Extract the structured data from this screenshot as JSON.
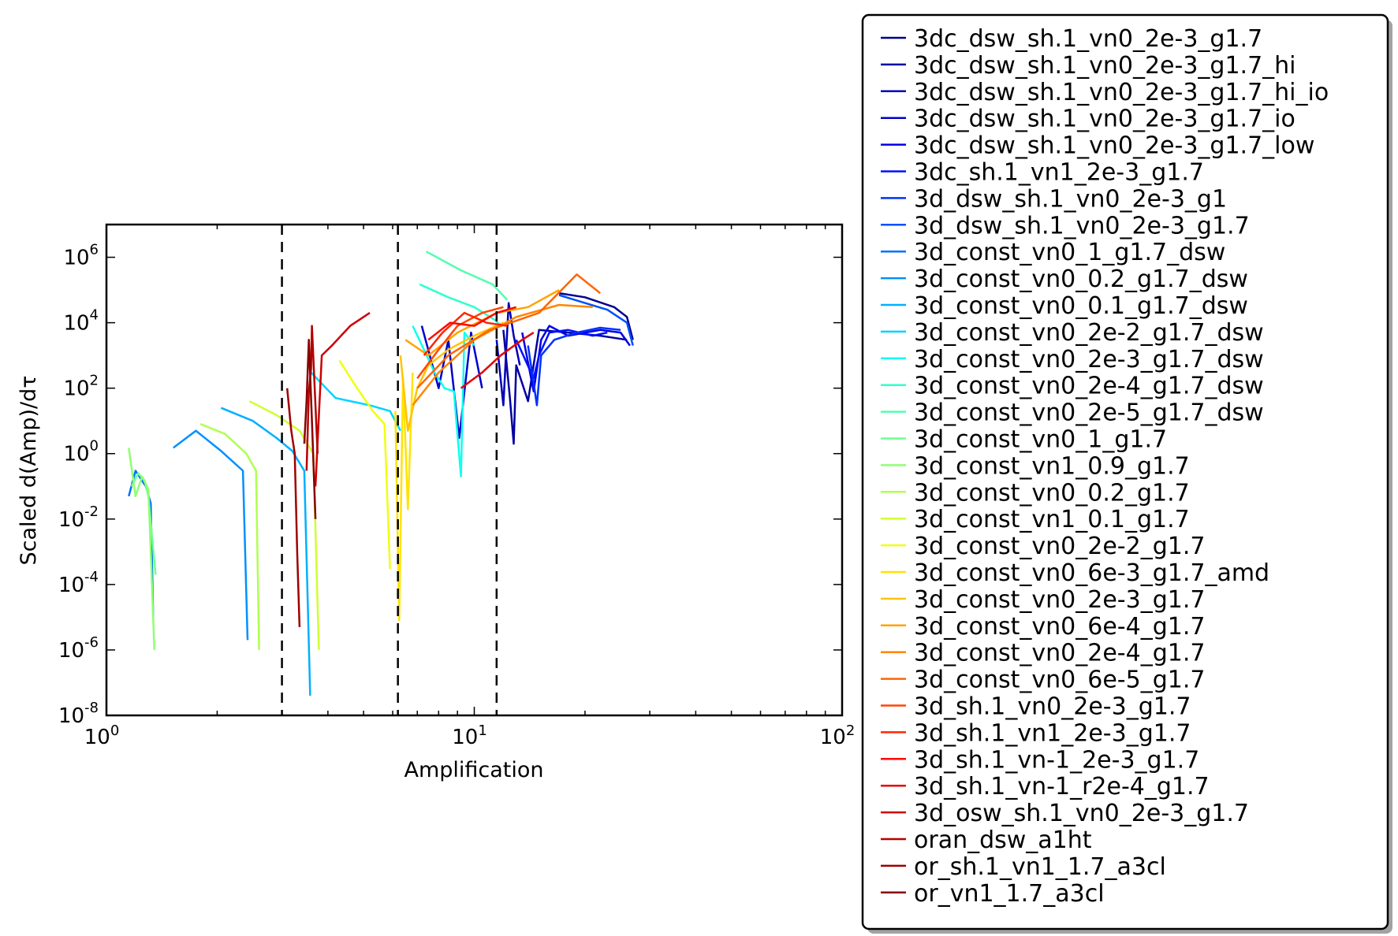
{
  "chart_data": {
    "type": "line",
    "xlabel": "Amplification",
    "ylabel": "Scaled d(Amp)/dτ",
    "x_scale": "log",
    "y_scale": "log",
    "xlim": [
      1,
      100
    ],
    "ylim": [
      1e-08,
      10000000.0
    ],
    "x_ticks": [
      {
        "base": "10",
        "exp": "0"
      },
      {
        "base": "10",
        "exp": "1"
      },
      {
        "base": "10",
        "exp": "2"
      }
    ],
    "y_ticks": [
      {
        "base": "10",
        "exp": "-8"
      },
      {
        "base": "10",
        "exp": "-6"
      },
      {
        "base": "10",
        "exp": "-4"
      },
      {
        "base": "10",
        "exp": "-2"
      },
      {
        "base": "10",
        "exp": "0"
      },
      {
        "base": "10",
        "exp": "2"
      },
      {
        "base": "10",
        "exp": "4"
      },
      {
        "base": "10",
        "exp": "6"
      }
    ],
    "vlines": [
      3.0,
      6.2,
      11.5
    ],
    "vline_style": "dashed-black",
    "legend_location": "outside-right",
    "series": [
      {
        "name": "3dc_dsw_sh.1_vn0_2e-3_g1.7",
        "color": "#00008f",
        "points": [
          [
            17,
            80000.0
          ],
          [
            20,
            60000.0
          ],
          [
            24,
            30000.0
          ],
          [
            26,
            15000.0
          ],
          [
            27,
            3000.0
          ]
        ]
      },
      {
        "name": "3dc_dsw_sh.1_vn0_2e-3_g1.7_hi",
        "color": "#0000a0",
        "points": [
          [
            12,
            6000.0
          ],
          [
            12.5,
            50
          ],
          [
            12.8,
            2
          ],
          [
            13,
            500
          ],
          [
            14,
            40
          ],
          [
            15,
            6000.0
          ],
          [
            18,
            5000.0
          ],
          [
            22,
            4000.0
          ],
          [
            26,
            3000.0
          ]
        ]
      },
      {
        "name": "3dc_dsw_sh.1_vn0_2e-3_g1.7_hi_io",
        "color": "#0000b5",
        "points": [
          [
            11.5,
            3000.0
          ],
          [
            12,
            30
          ],
          [
            12.4,
            40000.0
          ],
          [
            12.8,
            4000.0
          ],
          [
            13.3,
            500
          ]
        ]
      },
      {
        "name": "3dc_dsw_sh.1_vn0_2e-3_g1.7_io",
        "color": "#0000cc",
        "points": [
          [
            7.2,
            8000.0
          ],
          [
            8,
            100
          ],
          [
            8.5,
            3000.0
          ],
          [
            9.1,
            3
          ],
          [
            9.8,
            5000.0
          ],
          [
            10.5,
            100
          ]
        ]
      },
      {
        "name": "3dc_dsw_sh.1_vn0_2e-3_g1.7_low",
        "color": "#0000e3",
        "points": [
          [
            13.5,
            5000.0
          ],
          [
            14.5,
            80
          ],
          [
            15.2,
            3000.0
          ],
          [
            16,
            8000.0
          ],
          [
            18,
            4000.0
          ],
          [
            22,
            6000.0
          ],
          [
            25,
            5000.0
          ],
          [
            26.5,
            2000.0
          ]
        ]
      },
      {
        "name": "3dc_sh.1_vn1_2e-3_g1.7",
        "color": "#0010ff",
        "points": [
          [
            13,
            3000.0
          ],
          [
            14.5,
            200
          ],
          [
            15,
            1000.0
          ],
          [
            16,
            5000.0
          ],
          [
            18,
            6000.0
          ],
          [
            21,
            4000.0
          ],
          [
            23,
            5000.0
          ]
        ]
      },
      {
        "name": "3d_dsw_sh.1_vn0_2e-3_g1",
        "color": "#0030ff",
        "points": [
          [
            14,
            2000.0
          ],
          [
            14.8,
            30
          ],
          [
            15.2,
            1000.0
          ],
          [
            16.5,
            3000.0
          ],
          [
            19,
            5000.0
          ],
          [
            22,
            7000.0
          ],
          [
            25,
            6000.0
          ]
        ]
      },
      {
        "name": "3d_dsw_sh.1_vn0_2e-3_g1.7",
        "color": "#0050ff",
        "points": [
          [
            17,
            70000.0
          ],
          [
            20,
            40000.0
          ],
          [
            23,
            25000.0
          ],
          [
            26,
            10000.0
          ],
          [
            27,
            2000.0
          ]
        ]
      },
      {
        "name": "3d_const_vn0_1_g1.7_dsw",
        "color": "#0070ff",
        "points": [
          [
            1.15,
            0.05
          ],
          [
            1.2,
            0.3
          ],
          [
            1.28,
            0.1
          ],
          [
            1.32,
            0.03
          ],
          [
            1.34,
            1e-05
          ]
        ]
      },
      {
        "name": "3d_const_vn0_0.2_g1.7_dsw",
        "color": "#0090ff",
        "points": [
          [
            1.52,
            1.5
          ],
          [
            1.75,
            5
          ],
          [
            2.05,
            1.2
          ],
          [
            2.35,
            0.3
          ],
          [
            2.42,
            2e-06
          ]
        ]
      },
      {
        "name": "3d_const_vn0_0.1_g1.7_dsw",
        "color": "#00b0ff",
        "points": [
          [
            2.05,
            25
          ],
          [
            2.5,
            10
          ],
          [
            2.9,
            3
          ],
          [
            3.2,
            1.2
          ],
          [
            3.45,
            0.3
          ],
          [
            3.58,
            4e-08
          ]
        ]
      },
      {
        "name": "3d_const_vn0_2e-2_g1.7_dsw",
        "color": "#00d4ff",
        "points": [
          [
            3.6,
            300
          ],
          [
            4.2,
            50
          ],
          [
            5.2,
            30
          ],
          [
            5.9,
            20
          ],
          [
            6.3,
            5
          ]
        ]
      },
      {
        "name": "3d_const_vn0_2e-3_g1.7_dsw",
        "color": "#10ffef",
        "points": [
          [
            6.8,
            8000.0
          ],
          [
            7.3,
            1500.0
          ],
          [
            7.8,
            300
          ],
          [
            8.3,
            100
          ],
          [
            8.8,
            80
          ],
          [
            9.2,
            0.2
          ],
          [
            9.4,
            5000.0
          ],
          [
            10,
            2000.0
          ]
        ]
      },
      {
        "name": "3d_const_vn0_2e-4_g1.7_dsw",
        "color": "#30ffcf",
        "points": [
          [
            7.1,
            150000.0
          ],
          [
            8.5,
            60000.0
          ],
          [
            10,
            30000.0
          ],
          [
            11.4,
            12000.0
          ],
          [
            11.8,
            8000.0
          ]
        ]
      },
      {
        "name": "3d_const_vn0_2e-5_g1.7_dsw",
        "color": "#50ffaf",
        "points": [
          [
            7.4,
            1500000.0
          ],
          [
            9.2,
            400000.0
          ],
          [
            11.2,
            150000.0
          ],
          [
            12.3,
            50000.0
          ]
        ]
      },
      {
        "name": "3d_const_vn0_1_g1.7",
        "color": "#70ff8f",
        "points": [
          [
            1.17,
            0.1
          ],
          [
            1.22,
            0.25
          ],
          [
            1.27,
            0.15
          ],
          [
            1.3,
            0.05
          ],
          [
            1.36,
            0.0002
          ]
        ]
      },
      {
        "name": "3d_const_vn1_0.9_g1.7",
        "color": "#8fff70",
        "points": [
          [
            1.15,
            1.5
          ],
          [
            1.2,
            0.05
          ],
          [
            1.25,
            0.2
          ],
          [
            1.3,
            0.08
          ],
          [
            1.35,
            1e-06
          ]
        ]
      },
      {
        "name": "3d_const_vn0_0.2_g1.7",
        "color": "#afff50",
        "points": [
          [
            1.8,
            8
          ],
          [
            2.1,
            4
          ],
          [
            2.4,
            1
          ],
          [
            2.55,
            0.3
          ],
          [
            2.6,
            1e-06
          ]
        ]
      },
      {
        "name": "3d_const_vn1_0.1_g1.7",
        "color": "#cfff30",
        "points": [
          [
            2.45,
            40
          ],
          [
            2.9,
            15
          ],
          [
            3.35,
            5
          ],
          [
            3.65,
            1
          ],
          [
            3.78,
            1e-06
          ]
        ]
      },
      {
        "name": "3d_const_vn0_2e-2_g1.7",
        "color": "#efff10",
        "points": [
          [
            4.3,
            700
          ],
          [
            4.8,
            100
          ],
          [
            5.3,
            20
          ],
          [
            5.7,
            8
          ],
          [
            5.9,
            0.0003
          ]
        ]
      },
      {
        "name": "3d_const_vn0_6e-3_g1.7_amd",
        "color": "#ffe300",
        "points": [
          [
            6.1,
            20
          ],
          [
            6.25,
            8e-06
          ],
          [
            6.4,
            200
          ],
          [
            6.6,
            0.02
          ],
          [
            6.8,
            300
          ]
        ]
      },
      {
        "name": "3d_const_vn0_2e-3_g1.7",
        "color": "#ffc400",
        "points": [
          [
            6.3,
            1000.0
          ],
          [
            6.6,
            5
          ],
          [
            7,
            100
          ],
          [
            7.5,
            500
          ],
          [
            8.5,
            1500.0
          ],
          [
            10,
            4000.0
          ],
          [
            12,
            10000.0
          ]
        ]
      },
      {
        "name": "3d_const_vn0_6e-4_g1.7",
        "color": "#ffa400",
        "points": [
          [
            6.5,
            3000.0
          ],
          [
            7.5,
            1000.0
          ],
          [
            9,
            5000.0
          ],
          [
            11.5,
            20000.0
          ],
          [
            14,
            30000.0
          ],
          [
            17,
            100000.0
          ]
        ]
      },
      {
        "name": "3d_const_vn0_2e-4_g1.7",
        "color": "#ff8500",
        "points": [
          [
            6.8,
            30
          ],
          [
            8,
            300
          ],
          [
            10,
            3000.0
          ],
          [
            13,
            15000.0
          ],
          [
            17,
            35000.0
          ],
          [
            21,
            30000.0
          ]
        ]
      },
      {
        "name": "3d_const_vn0_6e-5_g1.7",
        "color": "#ff6500",
        "points": [
          [
            7,
            100
          ],
          [
            8.5,
            1000.0
          ],
          [
            11,
            6000.0
          ],
          [
            15,
            20000.0
          ],
          [
            19,
            300000.0
          ],
          [
            22,
            80000.0
          ]
        ]
      },
      {
        "name": "3d_sh.1_vn0_2e-3_g1.7",
        "color": "#ff4600",
        "points": [
          [
            7,
            200
          ],
          [
            8,
            1500.0
          ],
          [
            9,
            8000.0
          ],
          [
            10.5,
            20000.0
          ],
          [
            12,
            30000.0
          ]
        ]
      },
      {
        "name": "3d_sh.1_vn1_2e-3_g1.7",
        "color": "#ff2600",
        "points": [
          [
            7.3,
            1000.0
          ],
          [
            8.2,
            5000.0
          ],
          [
            9.4,
            20000.0
          ],
          [
            10.8,
            10000.0
          ],
          [
            12.3,
            8000.0
          ]
        ]
      },
      {
        "name": "3d_sh.1_vn-1_2e-3_g1.7",
        "color": "#ff0700",
        "points": [
          [
            7.5,
            3000.0
          ],
          [
            8.6,
            10000.0
          ],
          [
            10,
            8000.0
          ],
          [
            11.5,
            20000.0
          ],
          [
            13,
            30000.0
          ]
        ]
      },
      {
        "name": "3d_sh.1_vn-1_r2e-4_g1.7",
        "color": "#e40000",
        "points": [
          [
            9.2,
            100
          ],
          [
            10.5,
            300
          ],
          [
            11.8,
            1000.0
          ],
          [
            13.5,
            3000.0
          ],
          [
            14.5,
            5000.0
          ]
        ]
      },
      {
        "name": "3d_osw_sh.1_vn0_2e-3_g1.7",
        "color": "#cd0000",
        "points": [
          [
            3.7,
            0.1
          ],
          [
            3.85,
            1000.0
          ],
          [
            4.1,
            2000.0
          ],
          [
            4.6,
            8000.0
          ],
          [
            5.2,
            20000.0
          ]
        ]
      },
      {
        "name": "oran_dsw_a1ht",
        "color": "#b60000",
        "points": [
          [
            3.5,
            0.3
          ],
          [
            3.55,
            80
          ],
          [
            3.6,
            400
          ],
          [
            3.62,
            8000.0
          ],
          [
            3.75,
            1
          ]
        ]
      },
      {
        "name": "or_sh.1_vn1_1.7_a3cl",
        "color": "#9f0000",
        "points": [
          [
            3.1,
            100
          ],
          [
            3.18,
            5
          ],
          [
            3.25,
            1
          ],
          [
            3.3,
            0.001
          ],
          [
            3.35,
            5e-06
          ]
        ]
      },
      {
        "name": "or_vn1_1.7_a3cl",
        "color": "#880000",
        "points": [
          [
            3.45,
            2
          ],
          [
            3.5,
            40
          ],
          [
            3.55,
            3000.0
          ],
          [
            3.62,
            10
          ],
          [
            3.7,
            0.01
          ]
        ]
      }
    ]
  }
}
